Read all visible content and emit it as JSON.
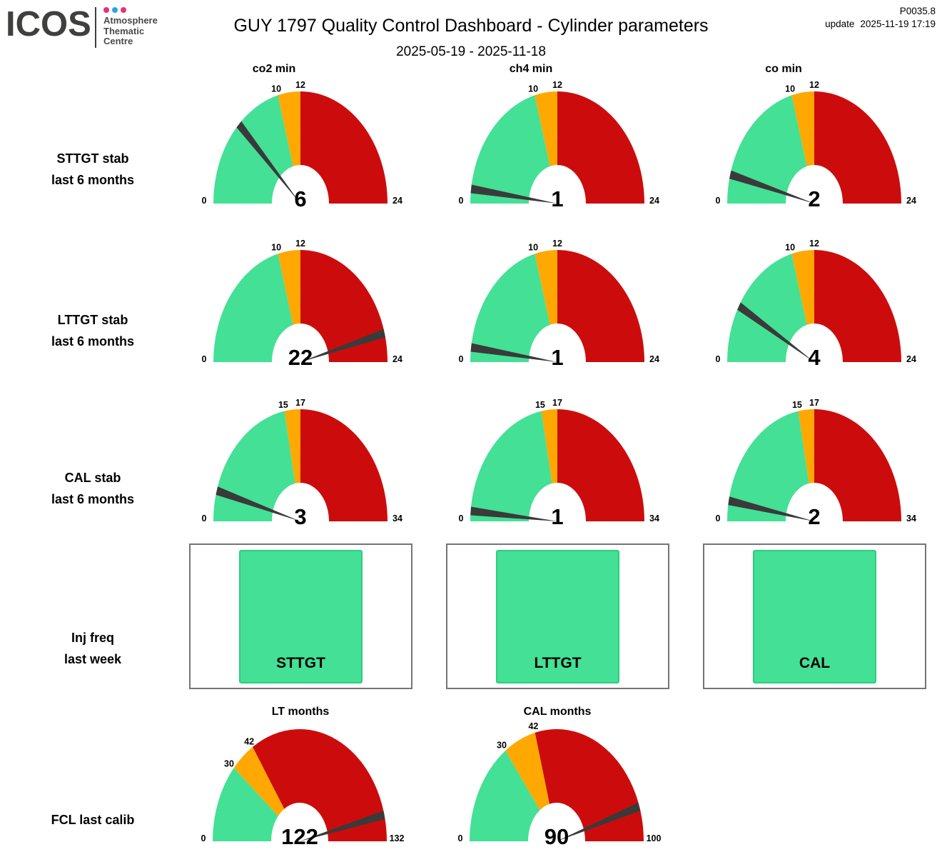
{
  "header": {
    "logo": "ICOS",
    "logo_subtitle_lines": [
      "Atmosphere",
      "Thematic",
      "Centre"
    ],
    "logo_dot_colors": [
      "#E5317B",
      "#2FA3DC",
      "#E5317B"
    ],
    "title": "GUY 1797 Quality Control Dashboard - Cylinder parameters",
    "product_id": "P0035.8",
    "update_label": "update",
    "update_datetime": "2025-11-19 17:19",
    "date_range": "2025-05-19 - 2025-11-18"
  },
  "chart_data": {
    "type": "gauge-dashboard",
    "columns": [
      "co2 min",
      "ch4 min",
      "co min"
    ],
    "gauge_rows": [
      {
        "label_lines": [
          "STTGT stab",
          "last 6 months"
        ],
        "min": 0,
        "max": 24,
        "thresholds": [
          10,
          12
        ],
        "values": [
          6,
          1,
          2
        ]
      },
      {
        "label_lines": [
          "LTTGT stab",
          "last 6 months"
        ],
        "min": 0,
        "max": 24,
        "thresholds": [
          10,
          12
        ],
        "values": [
          22,
          1,
          4
        ]
      },
      {
        "label_lines": [
          "CAL stab",
          "last 6 months"
        ],
        "min": 0,
        "max": 34,
        "thresholds": [
          15,
          17
        ],
        "values": [
          3,
          1,
          2
        ]
      }
    ],
    "indicator_row": {
      "label_lines": [
        "Inj freq",
        "last week"
      ],
      "boxes": [
        {
          "label": "STTGT",
          "status_color": "#44E095"
        },
        {
          "label": "LTTGT",
          "status_color": "#44E095"
        },
        {
          "label": "CAL",
          "status_color": "#44E095"
        }
      ]
    },
    "bottom_gauges": {
      "label": "FCL last calib",
      "gauges": [
        {
          "title": "LT months",
          "min": 0,
          "max": 132,
          "thresholds": [
            30,
            42
          ],
          "value": 122
        },
        {
          "title": "CAL months",
          "min": 0,
          "max": 100,
          "thresholds": [
            30,
            42
          ],
          "value": 90
        }
      ]
    },
    "band_colors": {
      "good": "#44E095",
      "warning": "#FFA802",
      "critical": "#CC0C0C"
    },
    "needle_color": "#3A3A3A"
  }
}
